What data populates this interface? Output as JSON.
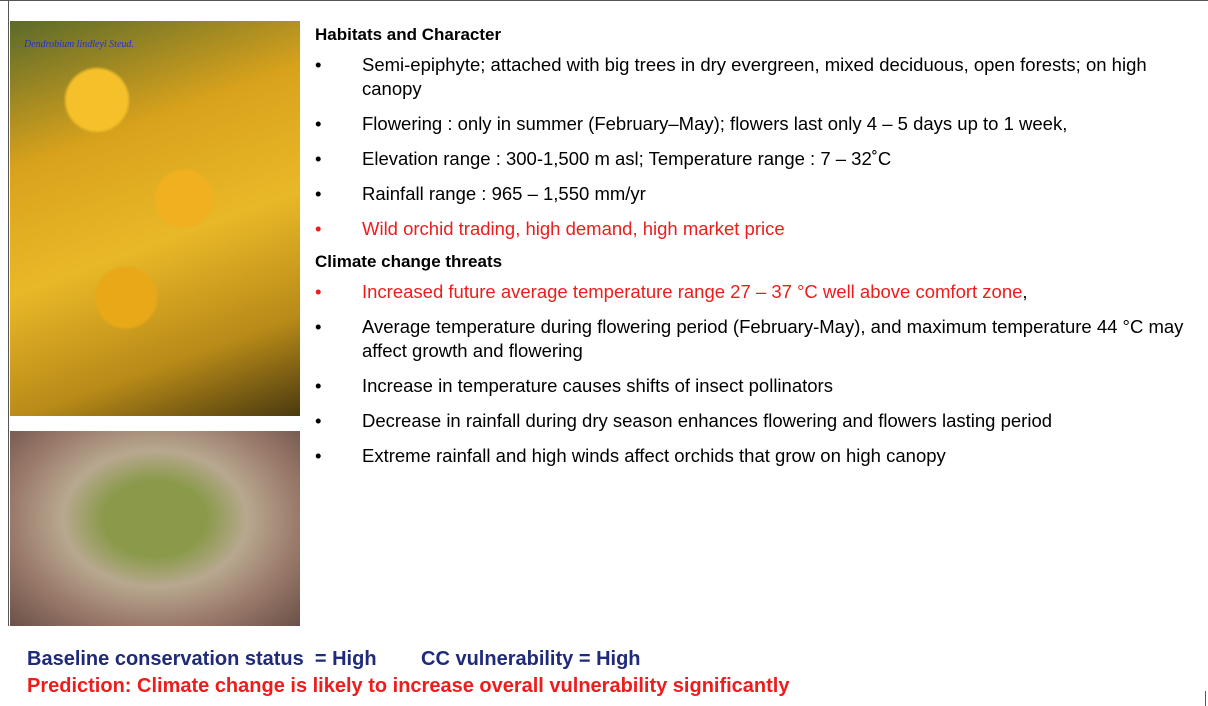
{
  "images": [
    {
      "caption": "Dendrobium lindleyi Steud."
    },
    {}
  ],
  "sections": [
    {
      "heading": "Habitats and Character",
      "bullets": [
        {
          "text": "Semi-epiphyte; attached with big trees in dry evergreen, mixed deciduous, open forests; on high canopy"
        },
        {
          "text": "Flowering : only in summer (February–May); flowers last only 4 – 5 days up to 1 week,"
        },
        {
          "text": "Elevation range : 300-1,500 m asl; Temperature range : 7 – 32˚C"
        },
        {
          "text": "Rainfall range : 965 – 1,550 mm/yr"
        },
        {
          "text": "Wild orchid trading, high demand, high market price",
          "color": "#ee1c1c"
        }
      ]
    },
    {
      "heading": "Climate change threats",
      "bullets": [
        {
          "text": "Increased future average temperature range 27 – 37 °C well above comfort zone",
          "color": "#ee1c1c",
          "suffix": ","
        },
        {
          "text": "Average temperature during flowering period (February-May), and maximum temperature 44 °C may affect growth and flowering"
        },
        {
          "text": "Increase in temperature causes shifts of insect pollinators"
        },
        {
          "text": "Decrease in rainfall during dry season enhances flowering and  flowers lasting  period"
        },
        {
          "text": "Extreme rainfall and high winds affect orchids that grow on high canopy"
        }
      ]
    }
  ],
  "footer": {
    "status": "Baseline conservation status  = High",
    "vulnerability": "CC vulnerability = High",
    "prediction": "Prediction: Climate change is likely to increase overall vulnerability significantly"
  }
}
